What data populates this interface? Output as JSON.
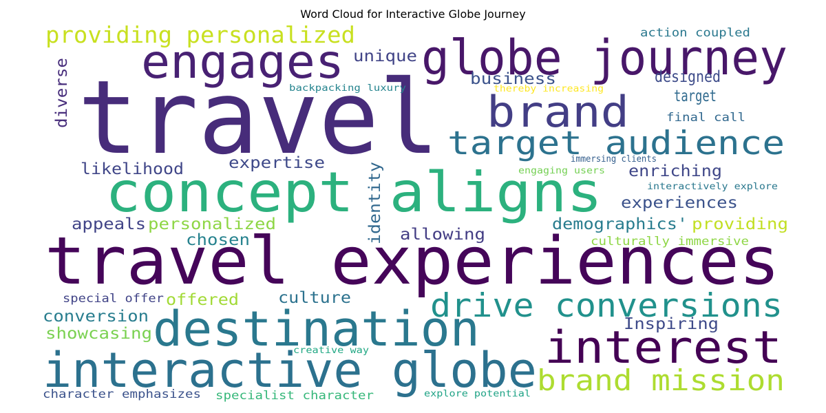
{
  "title": "Word Cloud for Interactive Globe Journey",
  "words": [
    {
      "text": "travel",
      "color": "#472c7a"
    },
    {
      "text": "travel experiences",
      "color": "#450559"
    },
    {
      "text": "concept aligns",
      "color": "#2cb17e"
    },
    {
      "text": "globe journey",
      "color": "#481769"
    },
    {
      "text": "interactive globe",
      "color": "#2c718e"
    },
    {
      "text": "destination",
      "color": "#2a788e"
    },
    {
      "text": "interest",
      "color": "#440154"
    },
    {
      "text": "engages",
      "color": "#482173"
    },
    {
      "text": "brand",
      "color": "#433e85"
    },
    {
      "text": "drive conversions",
      "color": "#21918c"
    },
    {
      "text": "target audience",
      "color": "#2c728e"
    },
    {
      "text": "brand mission",
      "color": "#addc30"
    },
    {
      "text": "providing personalized",
      "color": "#c8e020"
    },
    {
      "text": "unique",
      "color": "#414487"
    },
    {
      "text": "business",
      "color": "#3b528b"
    },
    {
      "text": "designed",
      "color": "#3e4c8a"
    },
    {
      "text": "target",
      "color": "#306a8e"
    },
    {
      "text": "action coupled",
      "color": "#2a788e"
    },
    {
      "text": "backpacking luxury",
      "color": "#25848e"
    },
    {
      "text": "thereby increasing",
      "color": "#fde725"
    },
    {
      "text": "final call",
      "color": "#31688e"
    },
    {
      "text": "diverse",
      "color": "#472d7b"
    },
    {
      "text": "likelihood",
      "color": "#404688"
    },
    {
      "text": "expertise",
      "color": "#3e4989"
    },
    {
      "text": "immersing clients",
      "color": "#355f8d"
    },
    {
      "text": "engaging users",
      "color": "#75d054"
    },
    {
      "text": "enriching",
      "color": "#3f4788"
    },
    {
      "text": "interactively explore",
      "color": "#2a788e"
    },
    {
      "text": "experiences",
      "color": "#3b528b"
    },
    {
      "text": "appeals",
      "color": "#414487"
    },
    {
      "text": "personalized",
      "color": "#8ed645"
    },
    {
      "text": "identity",
      "color": "#31688e"
    },
    {
      "text": "demographics'",
      "color": "#287c8e"
    },
    {
      "text": "providing",
      "color": "#c2df23"
    },
    {
      "text": "chosen",
      "color": "#26828e"
    },
    {
      "text": "allowing",
      "color": "#433d84"
    },
    {
      "text": "culturally immersive",
      "color": "#8ed645"
    },
    {
      "text": "special offer",
      "color": "#414487"
    },
    {
      "text": "offered",
      "color": "#a2da37"
    },
    {
      "text": "culture",
      "color": "#2c728e"
    },
    {
      "text": "conversion",
      "color": "#287d8e"
    },
    {
      "text": "Inspiring",
      "color": "#3e4a89"
    },
    {
      "text": "showcasing",
      "color": "#7ad151"
    },
    {
      "text": "creative way",
      "color": "#22a884"
    },
    {
      "text": "character emphasizes",
      "color": "#3b528b"
    },
    {
      "text": "specialist character",
      "color": "#35b779"
    },
    {
      "text": "explore potential",
      "color": "#20a386"
    }
  ]
}
